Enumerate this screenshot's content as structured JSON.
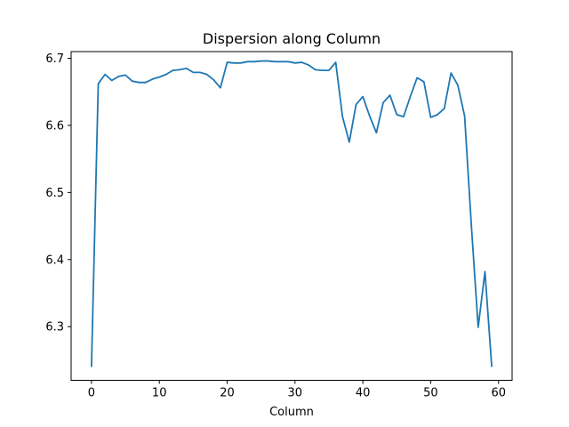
{
  "chart_data": {
    "type": "line",
    "title": "Dispersion along Column",
    "xlabel": "Column",
    "ylabel": "",
    "xlim": [
      -3,
      62
    ],
    "ylim": [
      6.22,
      6.71
    ],
    "xticks": [
      0,
      10,
      20,
      30,
      40,
      50,
      60
    ],
    "yticks": [
      6.3,
      6.4,
      6.5,
      6.6,
      6.7
    ],
    "grid": false,
    "color": "#1f77b4",
    "series": [
      {
        "x": [
          0,
          1,
          2,
          3,
          4,
          5,
          6,
          7,
          8,
          9,
          10,
          11,
          12,
          13,
          14,
          15,
          16,
          17,
          18,
          19,
          20,
          21,
          22,
          23,
          24,
          25,
          26,
          27,
          28,
          29,
          30,
          31,
          32,
          33,
          34,
          35,
          36,
          37,
          38,
          39,
          40,
          41,
          42,
          43,
          44,
          45,
          46,
          47,
          48,
          49,
          50,
          51,
          52,
          53,
          54,
          55,
          56,
          57,
          58,
          59
        ],
        "values": [
          6.24,
          6.662,
          6.676,
          6.667,
          6.673,
          6.675,
          6.666,
          6.664,
          6.664,
          6.669,
          6.672,
          6.676,
          6.682,
          6.683,
          6.685,
          6.679,
          6.679,
          6.676,
          6.668,
          6.656,
          6.694,
          6.693,
          6.693,
          6.695,
          6.695,
          6.696,
          6.696,
          6.695,
          6.695,
          6.695,
          6.693,
          6.694,
          6.69,
          6.683,
          6.682,
          6.682,
          6.694,
          6.613,
          6.575,
          6.631,
          6.643,
          6.614,
          6.589,
          6.634,
          6.645,
          6.616,
          6.613,
          6.643,
          6.671,
          6.665,
          6.612,
          6.616,
          6.625,
          6.678,
          6.66,
          6.614,
          6.45,
          6.299,
          6.382,
          6.24
        ]
      }
    ]
  }
}
